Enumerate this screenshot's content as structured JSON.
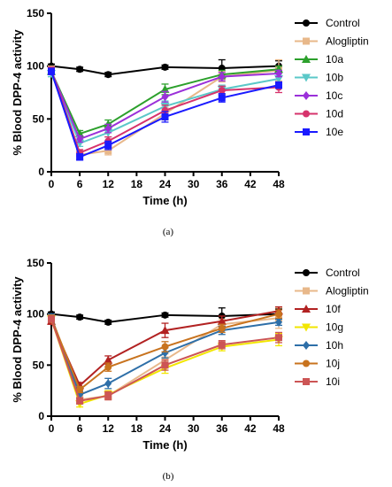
{
  "figure": {
    "panels": [
      {
        "caption": "(a)",
        "legend": [
          "Control",
          "Alogliptin",
          "10a",
          "10b",
          "10c",
          "10d",
          "10e"
        ]
      },
      {
        "caption": "(b)",
        "legend": [
          "Control",
          "Alogliptin",
          "10f",
          "10g",
          "10h",
          "10j",
          "10i"
        ]
      }
    ]
  },
  "chart_data": [
    {
      "type": "line",
      "xlabel": "Time (h)",
      "ylabel": "% Blood DPP-4 activity",
      "xlim": [
        0,
        48
      ],
      "ylim": [
        0,
        150
      ],
      "xticks": [
        "0",
        "6",
        "12",
        "18",
        "24",
        "30",
        "36",
        "42",
        "48"
      ],
      "yticks": [
        "0",
        "50",
        "100",
        "150"
      ],
      "x": [
        0,
        6,
        12,
        24,
        36,
        48
      ],
      "grid": false,
      "legend_position": "right",
      "series": [
        {
          "name": "Control",
          "color": "#000000",
          "marker": "circle",
          "values": [
            100,
            97,
            92,
            99,
            98,
            100
          ],
          "errors": [
            2,
            2,
            2,
            2,
            8,
            5
          ]
        },
        {
          "name": "Alogliptin",
          "color": "#e8b88a",
          "marker": "square",
          "values": [
            95,
            16,
            20,
            55,
            90,
            96
          ],
          "errors": [
            5,
            4,
            4,
            6,
            5,
            10
          ]
        },
        {
          "name": "10a",
          "color": "#2ca02c",
          "marker": "triangle-up",
          "values": [
            95,
            36,
            45,
            78,
            92,
            97
          ],
          "errors": [
            3,
            3,
            4,
            5,
            4,
            3
          ]
        },
        {
          "name": "10b",
          "color": "#5bc8c8",
          "marker": "triangle-down",
          "values": [
            93,
            27,
            37,
            62,
            78,
            88
          ],
          "errors": [
            3,
            3,
            4,
            5,
            4,
            3
          ]
        },
        {
          "name": "10c",
          "color": "#9b30d9",
          "marker": "diamond",
          "values": [
            95,
            31,
            41,
            71,
            90,
            93
          ],
          "errors": [
            3,
            3,
            4,
            5,
            4,
            3
          ]
        },
        {
          "name": "10d",
          "color": "#d6336c",
          "marker": "circle",
          "values": [
            96,
            18,
            29,
            58,
            77,
            80
          ],
          "errors": [
            3,
            3,
            4,
            5,
            4,
            5
          ]
        },
        {
          "name": "10e",
          "color": "#1a1aff",
          "marker": "square",
          "values": [
            95,
            14,
            25,
            52,
            70,
            82
          ],
          "errors": [
            3,
            3,
            4,
            5,
            4,
            3
          ]
        }
      ]
    },
    {
      "type": "line",
      "xlabel": "Time (h)",
      "ylabel": "% Blood DPP-4 activity",
      "xlim": [
        0,
        48
      ],
      "ylim": [
        0,
        150
      ],
      "xticks": [
        "0",
        "6",
        "12",
        "18",
        "24",
        "30",
        "36",
        "42",
        "48"
      ],
      "yticks": [
        "0",
        "50",
        "100",
        "150"
      ],
      "x": [
        0,
        6,
        12,
        24,
        36,
        48
      ],
      "grid": false,
      "legend_position": "right",
      "series": [
        {
          "name": "Control",
          "color": "#000000",
          "marker": "circle",
          "values": [
            100,
            97,
            92,
            99,
            98,
            100
          ],
          "errors": [
            2,
            2,
            2,
            2,
            8,
            5
          ]
        },
        {
          "name": "Alogliptin",
          "color": "#e8b88a",
          "marker": "square",
          "values": [
            95,
            16,
            20,
            55,
            90,
            96
          ],
          "errors": [
            5,
            4,
            4,
            6,
            5,
            10
          ]
        },
        {
          "name": "10f",
          "color": "#b22222",
          "marker": "triangle-up",
          "values": [
            93,
            30,
            55,
            84,
            93,
            103
          ],
          "errors": [
            3,
            3,
            4,
            7,
            5,
            4
          ]
        },
        {
          "name": "10g",
          "color": "#f2e600",
          "marker": "triangle-down",
          "values": [
            95,
            12,
            21,
            47,
            68,
            75
          ],
          "errors": [
            3,
            3,
            4,
            5,
            4,
            6
          ]
        },
        {
          "name": "10h",
          "color": "#2e6fa8",
          "marker": "diamond",
          "values": [
            97,
            21,
            32,
            62,
            84,
            92
          ],
          "errors": [
            3,
            3,
            5,
            5,
            4,
            3
          ]
        },
        {
          "name": "10j",
          "color": "#c8731e",
          "marker": "circle",
          "values": [
            96,
            26,
            48,
            68,
            86,
            100
          ],
          "errors": [
            3,
            3,
            4,
            5,
            4,
            4
          ]
        },
        {
          "name": "10i",
          "color": "#cc5555",
          "marker": "square",
          "values": [
            95,
            15,
            20,
            50,
            70,
            77
          ],
          "errors": [
            3,
            3,
            4,
            5,
            4,
            5
          ]
        }
      ]
    }
  ]
}
